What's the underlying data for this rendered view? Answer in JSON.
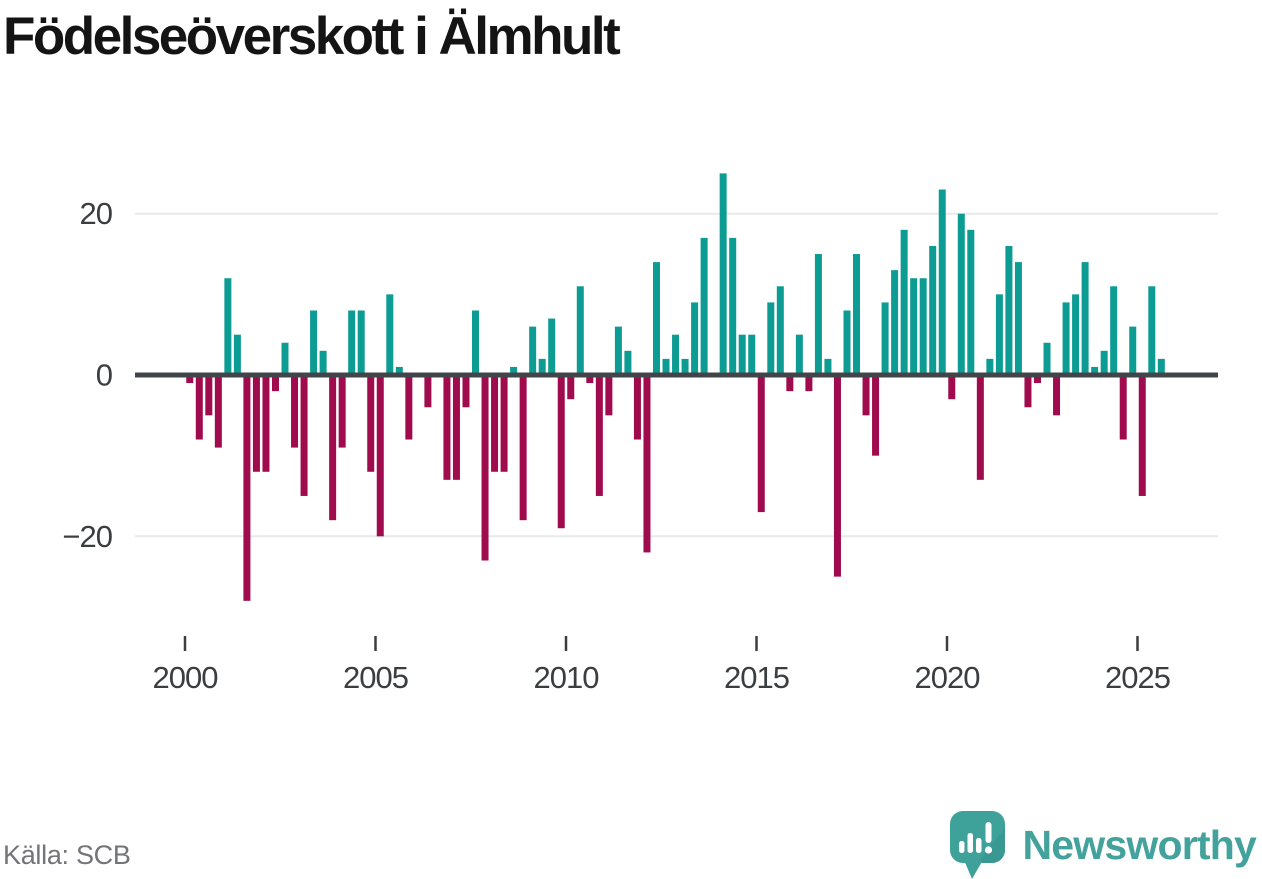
{
  "chart_data": {
    "type": "bar",
    "title": "Födelseöverskott i Älmhult",
    "source": "Källa: SCB",
    "start_quarter": "2000-Q1",
    "frequency": "quarterly",
    "values": [
      -1,
      -8,
      -5,
      -9,
      12,
      5,
      -28,
      -12,
      -12,
      -2,
      4,
      -9,
      -15,
      8,
      3,
      -18,
      -9,
      8,
      8,
      -12,
      -20,
      10,
      1,
      -8,
      0,
      -4,
      0,
      -13,
      -13,
      -4,
      8,
      -23,
      -12,
      -12,
      1,
      -18,
      6,
      2,
      7,
      -19,
      -3,
      11,
      -1,
      -15,
      -5,
      6,
      3,
      -8,
      -22,
      14,
      2,
      5,
      2,
      9,
      17,
      0,
      25,
      17,
      5,
      5,
      -17,
      9,
      11,
      -2,
      5,
      -2,
      15,
      2,
      -25,
      8,
      15,
      -5,
      -10,
      9,
      13,
      18,
      12,
      12,
      16,
      23,
      -3,
      20,
      18,
      -13,
      2,
      10,
      16,
      14,
      -4,
      -1,
      4,
      -5,
      9,
      10,
      14,
      1,
      3,
      11,
      -8,
      6,
      -15,
      11,
      2
    ],
    "y_axis": {
      "ticks": [
        {
          "value": 20,
          "label": "20"
        },
        {
          "value": 0,
          "label": "0"
        },
        {
          "value": -20,
          "label": "−20"
        }
      ],
      "ylim": [
        -30,
        27
      ],
      "grid": true
    },
    "x_axis": {
      "tick_years": [
        2000,
        2005,
        2010,
        2015,
        2020,
        2025
      ],
      "tick_labels": [
        "2000",
        "2005",
        "2010",
        "2015",
        "2020",
        "2025"
      ]
    },
    "legend": "none",
    "colors": {
      "positive_bar": "#0d9c94",
      "negative_bar": "#a00b4e",
      "axis_line": "#414549",
      "gridline": "#e9e9e9",
      "tick_text": "#3b3e40"
    }
  },
  "branding": {
    "wordmark": "Newsworthy",
    "logo_icon": "speech-bubble-bar-chart-icon",
    "brand_color": "#43a29b"
  }
}
